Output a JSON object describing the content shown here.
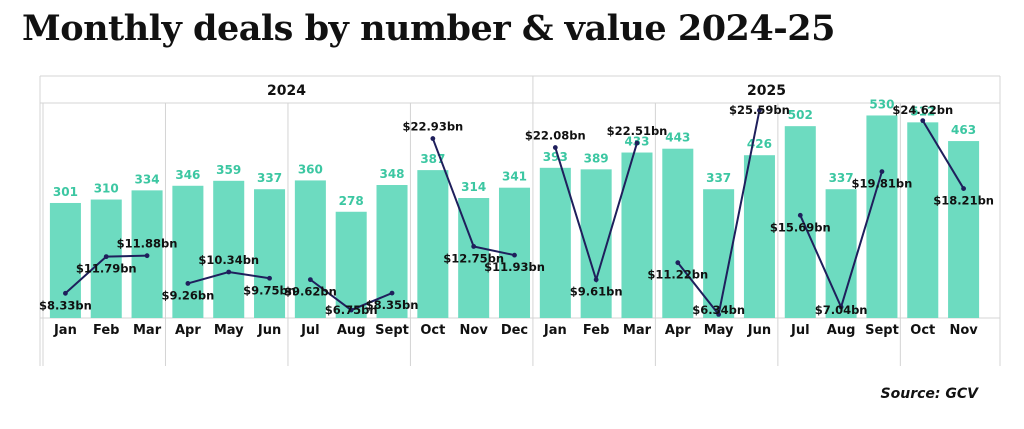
{
  "title": "Monthly deals by number & value 2024-25",
  "source": "Source: GCV",
  "colors": {
    "bar": "#6ddbc0",
    "count_label": "#3cc7a2",
    "line": "#1f1f5c",
    "grid": "#d4d4d4"
  },
  "chart_data": {
    "type": "bar",
    "title": "Monthly deals by number & value 2024-25",
    "years": [
      {
        "label": "2024",
        "months": 12
      },
      {
        "label": "2025",
        "months": 11
      }
    ],
    "categories": [
      "Jan",
      "Feb",
      "Mar",
      "Apr",
      "May",
      "Jun",
      "Jul",
      "Aug",
      "Sept",
      "Oct",
      "Nov",
      "Dec",
      "Jan",
      "Feb",
      "Mar",
      "Apr",
      "May",
      "Jun",
      "Jul",
      "Aug",
      "Sept",
      "Oct",
      "Nov"
    ],
    "series": [
      {
        "values": [
          301,
          310,
          334,
          346,
          359,
          337,
          360,
          278,
          348,
          387,
          314,
          341,
          393,
          389,
          433,
          443,
          337,
          426,
          502,
          337,
          530,
          512,
          463
        ],
        "labels": [
          "301",
          "310",
          "334",
          "346",
          "359",
          "337",
          "360",
          "278",
          "348",
          "387",
          "314",
          "341",
          "393",
          "389",
          "433",
          "443",
          "337",
          "426",
          "502",
          "337",
          "530",
          "512",
          "463"
        ]
      },
      {
        "values": [
          8.33,
          11.79,
          11.88,
          9.26,
          10.34,
          9.75,
          9.62,
          6.75,
          8.35,
          22.93,
          12.75,
          11.93,
          22.08,
          9.61,
          22.51,
          11.22,
          6.34,
          25.59,
          15.69,
          7.04,
          19.81,
          24.62,
          18.21
        ],
        "labels": [
          "$8.33bn",
          "$11.79bn",
          "$11.88bn",
          "$9.26bn",
          "$10.34bn",
          "$9.75bn",
          "$9.62bn",
          "$6.75bn",
          "$8.35bn",
          "$22.93bn",
          "$12.75bn",
          "$11.93bn",
          "$22.08bn",
          "$9.61bn",
          "$22.51bn",
          "$11.22bn",
          "$6.34bn",
          "$25.59bn",
          "$15.69bn",
          "$7.04bn",
          "$19.81bn",
          "$24.62bn",
          "$18.21bn"
        ]
      }
    ],
    "line_groups": [
      [
        0,
        1,
        2
      ],
      [
        3,
        4,
        5
      ],
      [
        6,
        7,
        8
      ],
      [
        9,
        10,
        11
      ],
      [
        12,
        13,
        14
      ],
      [
        15,
        16,
        17
      ],
      [
        18,
        19,
        20
      ],
      [
        21,
        22
      ]
    ],
    "bar_ylim": [
      0,
      560
    ],
    "line_ylim": [
      6,
      26
    ]
  }
}
